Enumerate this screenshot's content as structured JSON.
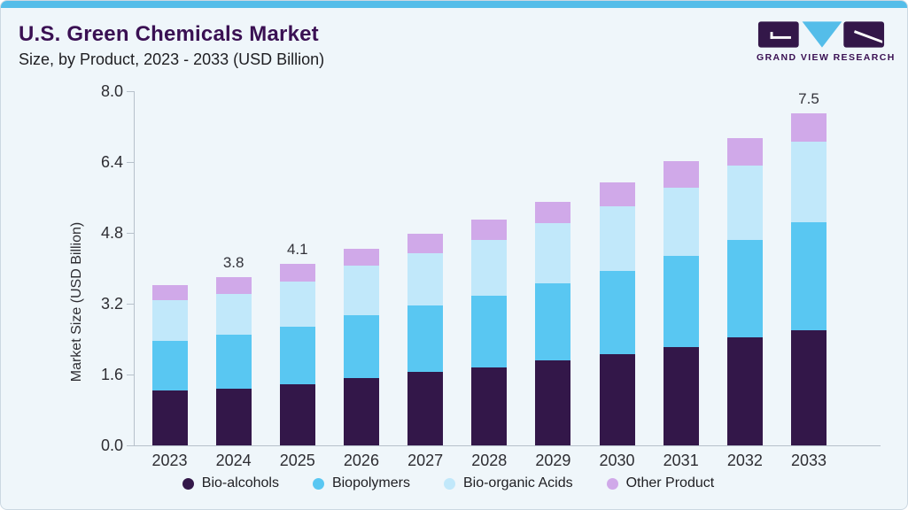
{
  "header": {
    "title": "U.S. Green Chemicals Market",
    "subtitle": "Size, by Product, 2023 - 2033 (USD Billion)"
  },
  "logo": {
    "text": "GRAND VIEW RESEARCH"
  },
  "colors": {
    "accent_blue": "#54bde9",
    "title_purple": "#3a1053",
    "card_bg": "#eff6fa",
    "axis_gray": "#b7c1cb",
    "bio_alcohols": "#331749",
    "biopolymers": "#59c7f2",
    "bio_organic_acids": "#c1e8fa",
    "other_product": "#d0a9e9"
  },
  "chart_data": {
    "type": "bar",
    "stacked": true,
    "title": "U.S. Green Chemicals Market Size, by Product, 2023 - 2033 (USD Billion)",
    "xlabel": "",
    "ylabel": "Market Size (USD Billion)",
    "ylim": [
      0,
      8.0
    ],
    "yticks": [
      "0.0",
      "1.6",
      "3.2",
      "4.8",
      "6.4",
      "8.0"
    ],
    "grid": false,
    "legend_position": "bottom",
    "categories": [
      "2023",
      "2024",
      "2025",
      "2026",
      "2027",
      "2028",
      "2029",
      "2030",
      "2031",
      "2032",
      "2033"
    ],
    "series": [
      {
        "name": "Bio-alcohols",
        "color": "#331749",
        "values": [
          1.24,
          1.28,
          1.38,
          1.53,
          1.66,
          1.77,
          1.92,
          2.06,
          2.23,
          2.45,
          2.61
        ]
      },
      {
        "name": "Biopolymers",
        "color": "#59c7f2",
        "values": [
          1.13,
          1.23,
          1.3,
          1.42,
          1.51,
          1.62,
          1.74,
          1.89,
          2.05,
          2.2,
          2.43
        ]
      },
      {
        "name": "Bio-organic Acids",
        "color": "#c1e8fa",
        "values": [
          0.91,
          0.92,
          1.03,
          1.11,
          1.18,
          1.26,
          1.36,
          1.45,
          1.55,
          1.68,
          1.82
        ]
      },
      {
        "name": "Other Product",
        "color": "#d0a9e9",
        "values": [
          0.35,
          0.37,
          0.39,
          0.39,
          0.43,
          0.46,
          0.49,
          0.55,
          0.59,
          0.62,
          0.64
        ]
      }
    ],
    "bar_total_labels": [
      "",
      "3.8",
      "4.1",
      "",
      "",
      "",
      "",
      "",
      "",
      "",
      "7.5"
    ]
  }
}
